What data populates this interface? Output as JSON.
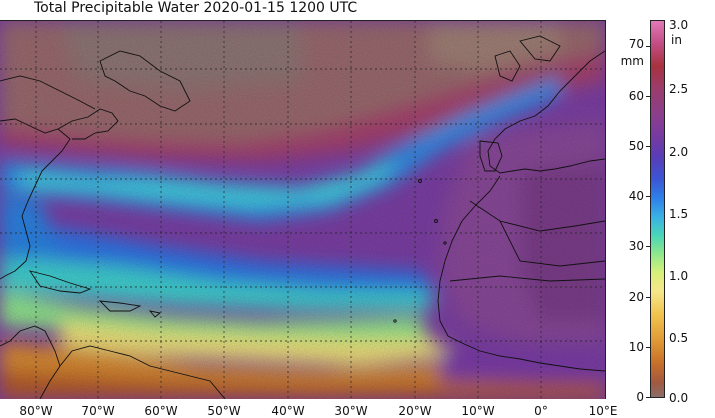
{
  "title": "Total Precipitable Water  2020-01-15 1200 UTC",
  "map": {
    "lon_labels": [
      "80°W",
      "70°W",
      "60°W",
      "50°W",
      "40°W",
      "30°W",
      "20°W",
      "10°W",
      "0°",
      "10°E"
    ],
    "lat_gridlines_deg": [
      10,
      20,
      30,
      40,
      50,
      60
    ],
    "lon_range": [
      -85,
      10
    ],
    "lat_range": [
      2,
      73
    ]
  },
  "colorbar": {
    "unit_mm": "mm",
    "unit_in": "in",
    "mm_ticks": [
      "70",
      "60",
      "50",
      "40",
      "30",
      "20",
      "10",
      "0"
    ],
    "in_ticks": [
      "3.0",
      "2.5",
      "2.0",
      "1.5",
      "1.0",
      "0.5",
      "0.0"
    ],
    "range_mm": [
      0,
      76
    ],
    "range_in": [
      0.0,
      3.0
    ]
  },
  "colors": {
    "dry": "#8a6d68",
    "moist_low": "#f0c44e",
    "moist_mid": "#39b0e6",
    "moist_high": "#8a3f8c",
    "land": "#1e1e1e"
  }
}
